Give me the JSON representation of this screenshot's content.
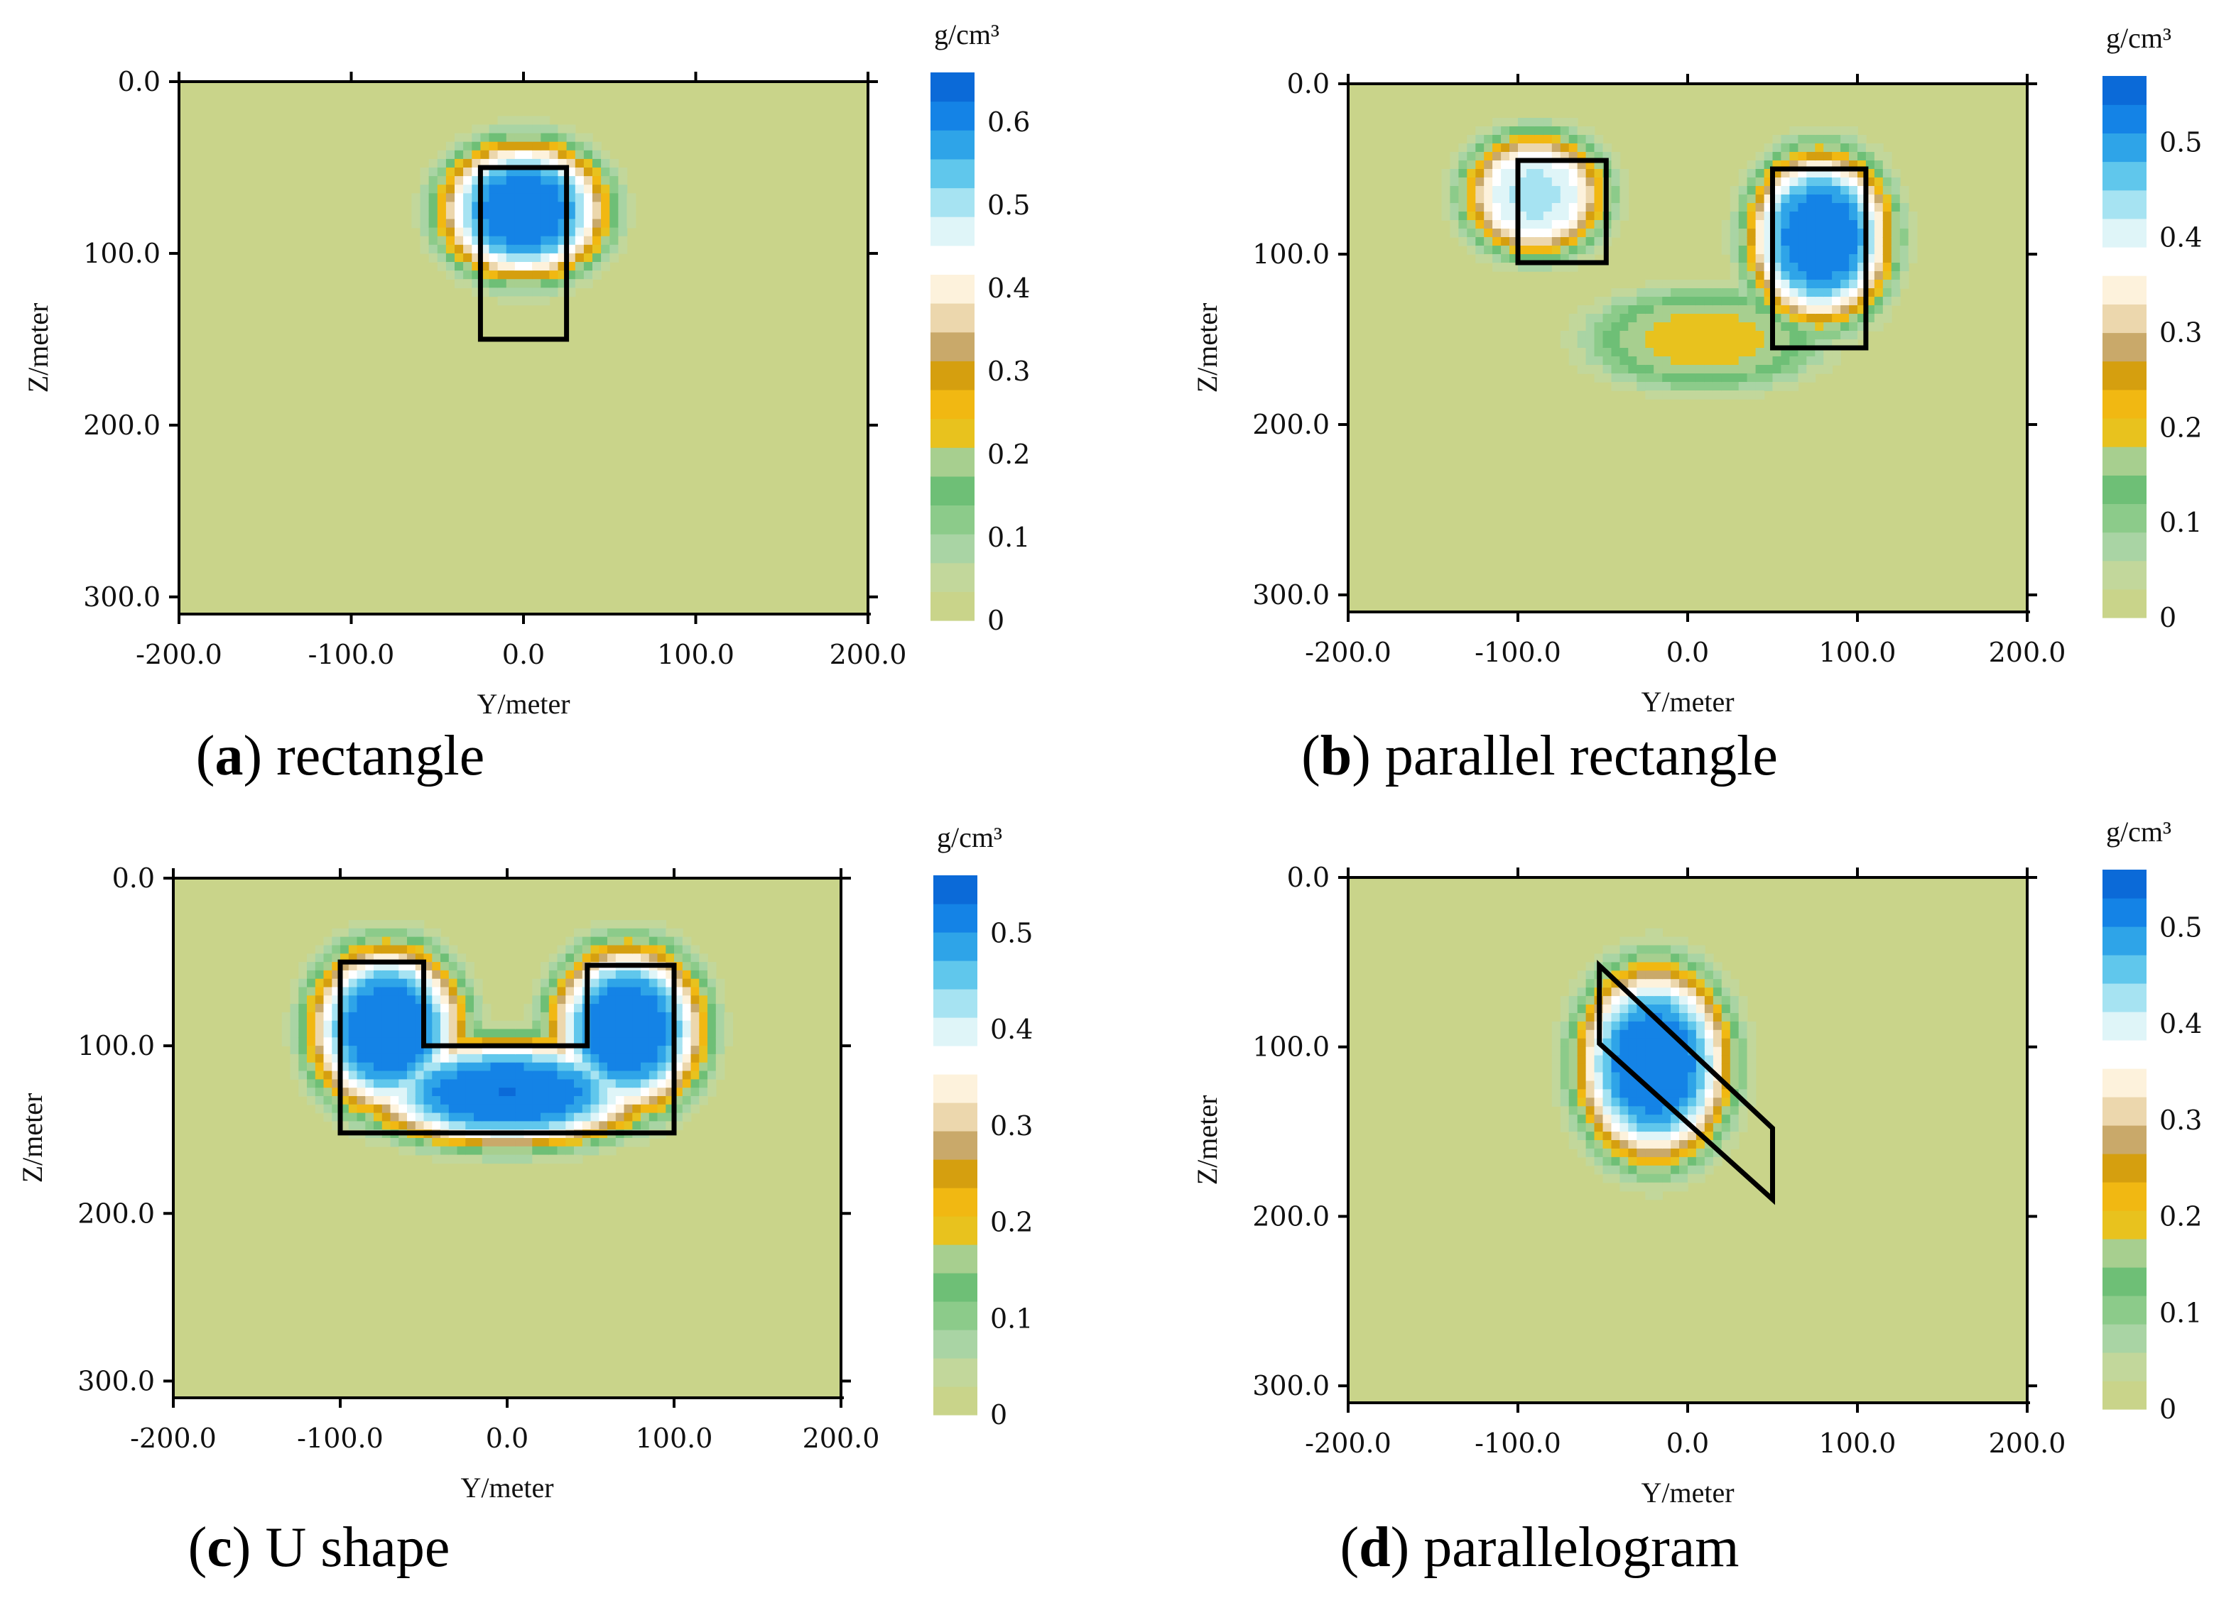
{
  "chart_data": [
    {
      "id": "a",
      "type": "heatmap",
      "caption_letter": "a",
      "caption_text": " rectangle",
      "xlabel": "Y/meter",
      "ylabel": "Z/meter",
      "xlim": [
        -200,
        200
      ],
      "ylim": [
        0,
        310
      ],
      "xticks": [
        "-200.0",
        "-100.0",
        "0.0",
        "100.0",
        "200.0"
      ],
      "xtick_values": [
        -200,
        -100,
        0,
        100,
        200
      ],
      "yticks": [
        "0.0",
        "100.0",
        "200.0",
        "300.0"
      ],
      "ytick_values": [
        0,
        100,
        200,
        300
      ],
      "colorbar": {
        "unit": "g/cm³",
        "min": 0,
        "max": 0.66,
        "ticks": [
          "0",
          "0.1",
          "0.2",
          "0.3",
          "0.4",
          "0.5",
          "0.6"
        ],
        "tick_values": [
          0,
          0.1,
          0.2,
          0.3,
          0.4,
          0.5,
          0.6
        ]
      },
      "anomalies": [
        {
          "cx": 0,
          "cz": 75,
          "rx": 48,
          "rz": 40,
          "peak": 0.66
        }
      ],
      "model_outlines": [
        [
          [
            -25,
            50
          ],
          [
            25,
            50
          ],
          [
            25,
            150
          ],
          [
            -25,
            150
          ]
        ]
      ]
    },
    {
      "id": "b",
      "type": "heatmap",
      "caption_letter": "b",
      "caption_text": " parallel rectangle",
      "xlabel": "Y/meter",
      "ylabel": "Z/meter",
      "xlim": [
        -200,
        200
      ],
      "ylim": [
        0,
        310
      ],
      "xticks": [
        "-200.0",
        "-100.0",
        "0.0",
        "100.0",
        "200.0"
      ],
      "xtick_values": [
        -200,
        -100,
        0,
        100,
        200
      ],
      "yticks": [
        "0.0",
        "100.0",
        "200.0",
        "300.0"
      ],
      "ytick_values": [
        0,
        100,
        200,
        300
      ],
      "colorbar": {
        "unit": "g/cm³",
        "min": 0,
        "max": 0.57,
        "ticks": [
          "0",
          "0.1",
          "0.2",
          "0.3",
          "0.4",
          "0.5"
        ],
        "tick_values": [
          0,
          0.1,
          0.2,
          0.3,
          0.4,
          0.5
        ]
      },
      "anomalies": [
        {
          "cx": -90,
          "cz": 65,
          "rx": 42,
          "rz": 36,
          "peak": 0.45
        },
        {
          "cx": 78,
          "cz": 90,
          "rx": 42,
          "rz": 50,
          "peak": 0.57
        },
        {
          "cx": 10,
          "cz": 150,
          "rx": 70,
          "rz": 30,
          "peak": 0.2
        }
      ],
      "model_outlines": [
        [
          [
            -100,
            45
          ],
          [
            -48,
            45
          ],
          [
            -48,
            105
          ],
          [
            -100,
            105
          ]
        ],
        [
          [
            50,
            50
          ],
          [
            105,
            50
          ],
          [
            105,
            155
          ],
          [
            50,
            155
          ]
        ]
      ]
    },
    {
      "id": "c",
      "type": "heatmap",
      "caption_letter": "c",
      "caption_text": " U shape",
      "xlabel": "Y/meter",
      "ylabel": "Z/meter",
      "xlim": [
        -200,
        200
      ],
      "ylim": [
        0,
        310
      ],
      "xticks": [
        "-200.0",
        "-100.0",
        "0.0",
        "100.0",
        "200.0"
      ],
      "xtick_values": [
        -200,
        -100,
        0,
        100,
        200
      ],
      "yticks": [
        "0.0",
        "100.0",
        "200.0",
        "300.0"
      ],
      "ytick_values": [
        0,
        100,
        200,
        300
      ],
      "colorbar": {
        "unit": "g/cm³",
        "min": 0,
        "max": 0.56,
        "ticks": [
          "0",
          "0.1",
          "0.2",
          "0.3",
          "0.4",
          "0.5"
        ],
        "tick_values": [
          0,
          0.1,
          0.2,
          0.3,
          0.4,
          0.5
        ]
      },
      "anomalies": [
        {
          "cx": -72,
          "cz": 90,
          "rx": 46,
          "rz": 50,
          "peak": 0.56
        },
        {
          "cx": 72,
          "cz": 90,
          "rx": 46,
          "rz": 50,
          "peak": 0.56
        },
        {
          "cx": 0,
          "cz": 128,
          "rx": 85,
          "rz": 32,
          "peak": 0.56
        }
      ],
      "model_outlines": [
        [
          [
            -100,
            50
          ],
          [
            -50,
            50
          ],
          [
            -50,
            100
          ],
          [
            48,
            100
          ],
          [
            48,
            52
          ],
          [
            100,
            52
          ],
          [
            100,
            152
          ],
          [
            -100,
            152
          ]
        ]
      ]
    },
    {
      "id": "d",
      "type": "heatmap",
      "caption_letter": "d",
      "caption_text": " parallelogram",
      "xlabel": "Y/meter",
      "ylabel": "Z/meter",
      "xlim": [
        -200,
        200
      ],
      "ylim": [
        0,
        310
      ],
      "xticks": [
        "-200.0",
        "-100.0",
        "0.0",
        "100.0",
        "200.0"
      ],
      "xtick_values": [
        -200,
        -100,
        0,
        100,
        200
      ],
      "yticks": [
        "0.0",
        "100.0",
        "200.0",
        "300.0"
      ],
      "ytick_values": [
        0,
        100,
        200,
        300
      ],
      "colorbar": {
        "unit": "g/cm³",
        "min": 0,
        "max": 0.56,
        "ticks": [
          "0",
          "0.1",
          "0.2",
          "0.3",
          "0.4",
          "0.5"
        ],
        "tick_values": [
          0,
          0.1,
          0.2,
          0.3,
          0.4,
          0.5
        ]
      },
      "anomalies": [
        {
          "cx": -20,
          "cz": 110,
          "rx": 45,
          "rz": 58,
          "peak": 0.56
        }
      ],
      "model_outlines": [
        [
          [
            -52,
            52
          ],
          [
            -52,
            98
          ],
          [
            50,
            190
          ],
          [
            50,
            148
          ]
        ]
      ]
    }
  ],
  "colormap": [
    "#c9d48a",
    "#c2d79b",
    "#a9d4a4",
    "#8ccb8a",
    "#6ebf76",
    "#a7cf8f",
    "#e8c21e",
    "#f1b812",
    "#d59f0f",
    "#c9a96a",
    "#ecd7ad",
    "#fdf2dc",
    "#ffffff",
    "#dff5f8",
    "#a6e3f2",
    "#60c7ec",
    "#2ea4e8",
    "#1483e6",
    "#0b6ad8"
  ]
}
